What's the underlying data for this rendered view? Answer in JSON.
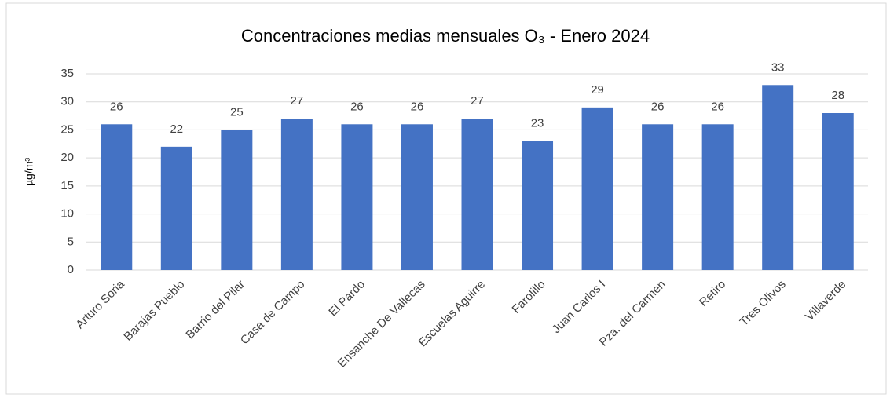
{
  "chart_data": {
    "type": "bar",
    "title": "Concentraciones medias mensuales O₃ - Enero 2024",
    "y_label": "µg/m³",
    "categories": [
      "Arturo Soria",
      "Barajas Pueblo",
      "Barrio del Pilar",
      "Casa de Campo",
      "El Pardo",
      "Ensanche De Vallecas",
      "Escuelas Aguirre",
      "Farolillo",
      "Juan Carlos I",
      "Pza. del Carmen",
      "Retiro",
      "Tres Olivos",
      "Villaverde"
    ],
    "values": [
      26,
      22,
      25,
      27,
      26,
      26,
      27,
      23,
      29,
      26,
      26,
      33,
      28
    ],
    "color": "#4472c4",
    "ylim": [
      0,
      35
    ],
    "yticks": [
      0,
      5,
      10,
      15,
      20,
      25,
      30,
      35
    ],
    "grid": true
  }
}
